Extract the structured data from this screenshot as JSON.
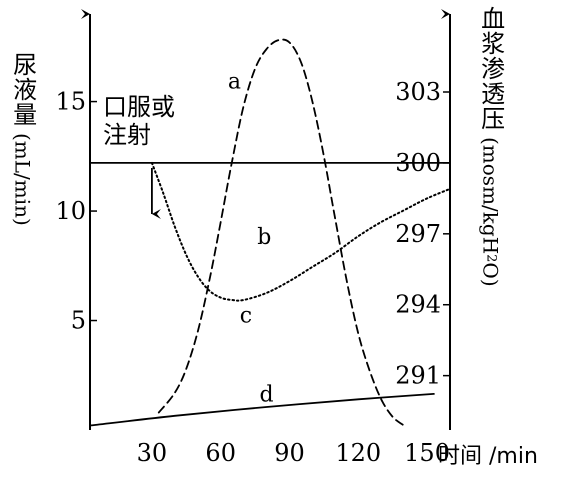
{
  "left_axis_label": {
    "chars": "尿液量",
    "unit": "(mL/min)"
  },
  "right_axis_label": {
    "chars": "血浆渗透压",
    "unit": "(mosm/kgH",
    "unit_sub": "2",
    "unit_end": "O)"
  },
  "x_axis_label": "时间 /min",
  "annotation": {
    "line1": "口服或",
    "line2": "注射",
    "arrow": "↓"
  },
  "chart_data": {
    "type": "line",
    "x_ticks": [
      "30",
      "60",
      "90",
      "120",
      "150"
    ],
    "x_tick_values": [
      30,
      60,
      90,
      120,
      150
    ],
    "xlim": [
      3,
      160
    ],
    "y_left": {
      "ticks": [
        "5",
        "10",
        "15"
      ],
      "tick_values": [
        5,
        10,
        15
      ],
      "ylim": [
        0,
        19
      ]
    },
    "y_right": {
      "ticks": [
        "291",
        "294",
        "297",
        "300",
        "303"
      ],
      "tick_values": [
        291,
        294,
        297,
        300,
        303
      ],
      "ylim": [
        288.7,
        306.3
      ]
    },
    "series": [
      {
        "name": "a",
        "axis": "left",
        "style": "dashed",
        "x": [
          33,
          40,
          45,
          50,
          55,
          60,
          65,
          70,
          75,
          80,
          85,
          90,
          95,
          100,
          105,
          110,
          115,
          120,
          125,
          130,
          135,
          140
        ],
        "y": [
          0.8,
          1.7,
          2.8,
          4.5,
          6.8,
          9.5,
          12.3,
          14.8,
          16.5,
          17.4,
          17.8,
          17.7,
          16.8,
          15.0,
          12.5,
          9.6,
          6.8,
          4.4,
          2.7,
          1.4,
          0.6,
          0.2
        ]
      },
      {
        "name": "b",
        "axis": "right",
        "style": "solid",
        "x": [
          3,
          160
        ],
        "y": [
          300,
          300
        ]
      },
      {
        "name": "c",
        "axis": "right",
        "style": "dotted",
        "x": [
          30,
          35,
          40,
          45,
          50,
          55,
          60,
          65,
          70,
          80,
          90,
          100,
          110,
          120,
          130,
          140,
          150,
          160
        ],
        "y": [
          300,
          298.7,
          297.3,
          296.1,
          295.2,
          294.6,
          294.3,
          294.2,
          294.2,
          294.5,
          295.0,
          295.6,
          296.2,
          296.9,
          297.5,
          298.0,
          298.5,
          298.9
        ]
      },
      {
        "name": "d",
        "axis": "left",
        "style": "solid",
        "x": [
          3,
          40,
          80,
          120,
          153
        ],
        "y": [
          0.2,
          0.65,
          1.05,
          1.4,
          1.65
        ]
      }
    ],
    "curve_labels": [
      {
        "name": "a",
        "text": "a",
        "x": 66,
        "y": 15.6
      },
      {
        "name": "b",
        "text": "b",
        "x": 79,
        "y": 8.5
      },
      {
        "name": "c",
        "text": "c",
        "x": 71,
        "y": 4.9
      },
      {
        "name": "d",
        "text": "d",
        "x": 80,
        "y": 1.3
      }
    ]
  }
}
